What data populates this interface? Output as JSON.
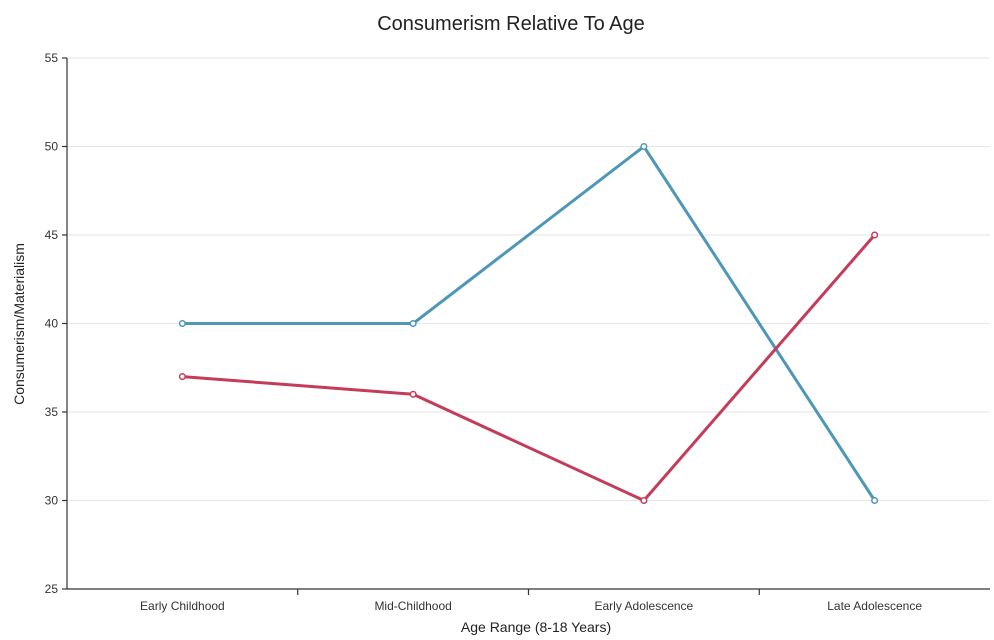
{
  "chart_data": {
    "type": "line",
    "title": "Consumerism Relative To Age",
    "xlabel": "Age Range (8-18 Years)",
    "ylabel": "Consumerism/Materialism",
    "categories": [
      "Early Childhood",
      "Mid-Childhood",
      "Early Adolescence",
      "Late Adolescence"
    ],
    "ylim": [
      25,
      55
    ],
    "yticks": [
      25,
      30,
      35,
      40,
      45,
      50,
      55
    ],
    "grid": true,
    "legend": "none",
    "series": [
      {
        "color": "#4e97b8",
        "values": [
          40,
          40,
          50,
          30
        ]
      },
      {
        "color": "#c43c5a",
        "values": [
          37,
          36,
          30,
          45
        ]
      }
    ]
  }
}
